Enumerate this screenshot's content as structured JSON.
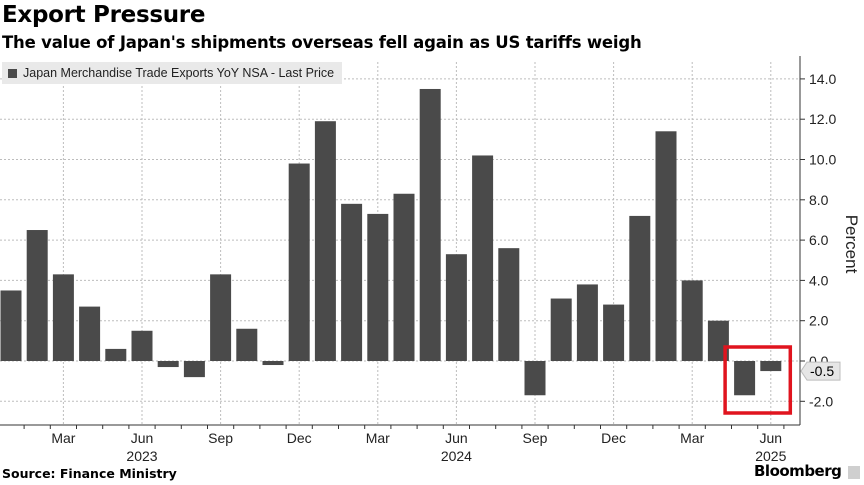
{
  "header": {
    "title": "Export Pressure",
    "subtitle": "The value of Japan's shipments overseas fell again as US tariffs weigh"
  },
  "footer": {
    "source": "Source: Finance Ministry",
    "brand": "Bloomberg"
  },
  "colors": {
    "bar": "#4a4a4a",
    "grid": "#bdbdbd",
    "highlight_box": "#e0141e",
    "legend_bg": "#e9e9e9"
  },
  "chart_data": {
    "type": "bar",
    "title": "Export Pressure",
    "subtitle": "The value of Japan's shipments overseas fell again as US tariffs weigh",
    "legend": [
      "Japan Merchandise Trade Exports YoY NSA - Last Price"
    ],
    "legend_placement": "top-left",
    "ylabel": "Percent",
    "xlabel": "",
    "ylim": [
      -3.2,
      14.8
    ],
    "yticks": [
      -2.0,
      0.0,
      2.0,
      4.0,
      6.0,
      8.0,
      10.0,
      12.0,
      14.0
    ],
    "ytick_labels": [
      "-2.0",
      "0.0",
      "2.0",
      "4.0",
      "6.0",
      "8.0",
      "10.0",
      "12.0",
      "14.0"
    ],
    "grid": true,
    "categories": [
      "2023-01",
      "2023-02",
      "2023-03",
      "2023-04",
      "2023-05",
      "2023-06",
      "2023-07",
      "2023-08",
      "2023-09",
      "2023-10",
      "2023-11",
      "2023-12",
      "2024-01",
      "2024-02",
      "2024-03",
      "2024-04",
      "2024-05",
      "2024-06",
      "2024-07",
      "2024-08",
      "2024-09",
      "2024-10",
      "2024-11",
      "2024-12",
      "2025-01",
      "2025-02",
      "2025-03",
      "2025-04",
      "2025-05",
      "2025-06"
    ],
    "values": [
      3.5,
      6.5,
      4.3,
      2.7,
      0.6,
      1.5,
      -0.3,
      -0.8,
      4.3,
      1.6,
      -0.2,
      9.8,
      11.9,
      7.8,
      7.3,
      8.3,
      13.5,
      5.3,
      10.2,
      5.6,
      -1.7,
      3.1,
      3.8,
      2.8,
      7.2,
      11.4,
      4.0,
      2.0,
      -1.7,
      -0.5
    ],
    "x_tick_labels": [
      {
        "index": 2,
        "label": "Mar"
      },
      {
        "index": 5,
        "label": "Jun"
      },
      {
        "index": 8,
        "label": "Sep"
      },
      {
        "index": 11,
        "label": "Dec"
      },
      {
        "index": 14,
        "label": "Mar"
      },
      {
        "index": 17,
        "label": "Jun"
      },
      {
        "index": 20,
        "label": "Sep"
      },
      {
        "index": 23,
        "label": "Dec"
      },
      {
        "index": 26,
        "label": "Mar"
      },
      {
        "index": 29,
        "label": "Jun"
      }
    ],
    "year_labels": [
      {
        "index": 5,
        "label": "2023"
      },
      {
        "index": 17,
        "label": "2024"
      },
      {
        "index": 29,
        "label": "2025"
      }
    ],
    "last_value_label": "-0.5",
    "highlighted_indices": [
      28,
      29
    ]
  }
}
